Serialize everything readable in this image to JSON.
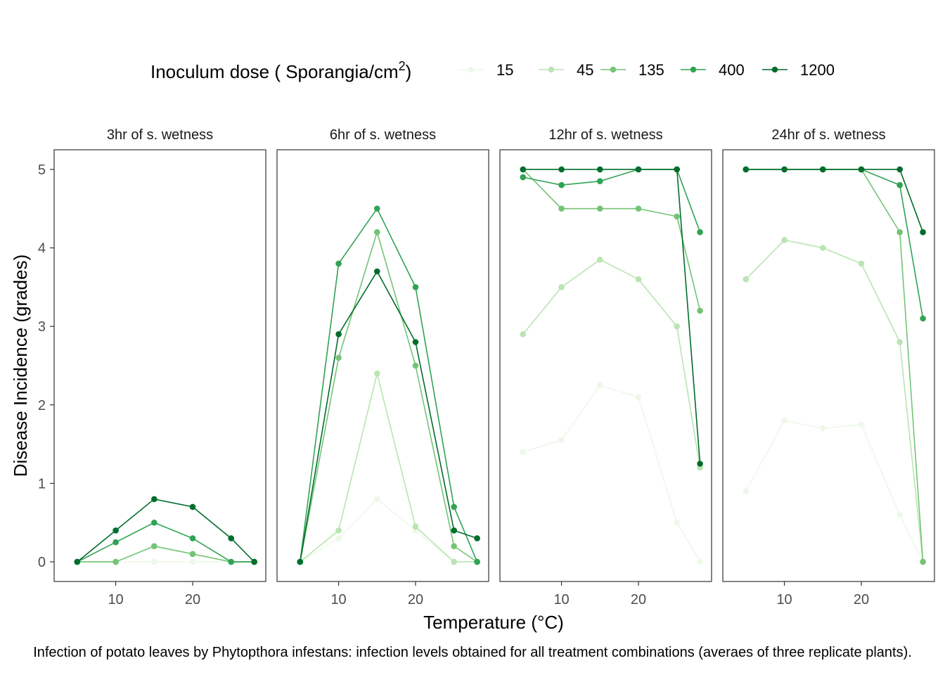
{
  "chart_data": {
    "type": "line",
    "legend": {
      "title_main": "Inoculum dose ( Sporangia/cm",
      "title_sup": "2",
      "title_close": ")",
      "placement": "top",
      "entries": [
        "15",
        "45",
        "135",
        "400",
        "1200"
      ]
    },
    "colors": {
      "15": "#edf8e9",
      "45": "#bae4b3",
      "135": "#74c476",
      "400": "#31a354",
      "1200": "#006d2c"
    },
    "xlabel": "Temperature (°C)",
    "ylabel": "Disease Incidence (grades)",
    "caption": "Infection of potato leaves by Phytopthora infestans: infection levels obtained for all treatment combinations (averaes of three replicate plants).",
    "x": [
      5,
      10,
      15,
      20,
      25,
      28
    ],
    "xlim": [
      2,
      29.5
    ],
    "ylim": [
      -0.25,
      5.25
    ],
    "x_ticks": [
      10,
      20
    ],
    "y_ticks": [
      0,
      1,
      2,
      3,
      4,
      5
    ],
    "grid": false,
    "panels": [
      {
        "title": "3hr of s. wetness",
        "series": [
          {
            "name": "15",
            "values": [
              0,
              0,
              0,
              0,
              0,
              0
            ]
          },
          {
            "name": "45",
            "values": [
              0,
              0,
              0.2,
              0.1,
              0,
              0
            ]
          },
          {
            "name": "135",
            "values": [
              0,
              0,
              0.2,
              0.1,
              0,
              0
            ]
          },
          {
            "name": "400",
            "values": [
              0,
              0.25,
              0.5,
              0.3,
              0,
              0
            ]
          },
          {
            "name": "1200",
            "values": [
              0,
              0.4,
              0.8,
              0.7,
              0.3,
              0
            ]
          }
        ]
      },
      {
        "title": "6hr of s. wetness",
        "series": [
          {
            "name": "15",
            "values": [
              0,
              0.3,
              0.8,
              0.4,
              0,
              0
            ]
          },
          {
            "name": "45",
            "values": [
              0,
              0.4,
              2.4,
              0.45,
              0,
              0
            ]
          },
          {
            "name": "135",
            "values": [
              0,
              2.6,
              4.2,
              2.5,
              0.2,
              0
            ]
          },
          {
            "name": "400",
            "values": [
              0,
              3.8,
              4.5,
              3.5,
              0.7,
              0
            ]
          },
          {
            "name": "1200",
            "values": [
              0,
              2.9,
              3.7,
              2.8,
              0.4,
              0.3
            ]
          }
        ]
      },
      {
        "title": "12hr of s. wetness",
        "series": [
          {
            "name": "15",
            "values": [
              1.4,
              1.55,
              2.25,
              2.1,
              0.5,
              0
            ]
          },
          {
            "name": "45",
            "values": [
              2.9,
              3.5,
              3.85,
              3.6,
              3.0,
              1.2
            ]
          },
          {
            "name": "135",
            "values": [
              5.0,
              4.5,
              4.5,
              4.5,
              4.4,
              3.2
            ]
          },
          {
            "name": "400",
            "values": [
              4.9,
              4.8,
              4.85,
              5.0,
              5.0,
              4.2
            ]
          },
          {
            "name": "1200",
            "values": [
              5.0,
              5.0,
              5.0,
              5.0,
              5.0,
              1.25
            ]
          }
        ]
      },
      {
        "title": "24hr of s. wetness",
        "series": [
          {
            "name": "15",
            "values": [
              0.9,
              1.8,
              1.7,
              1.75,
              0.6,
              0
            ]
          },
          {
            "name": "45",
            "values": [
              3.6,
              4.1,
              4.0,
              3.8,
              2.8,
              0
            ]
          },
          {
            "name": "135",
            "values": [
              5.0,
              5.0,
              5.0,
              5.0,
              4.2,
              0
            ]
          },
          {
            "name": "400",
            "values": [
              5.0,
              5.0,
              5.0,
              5.0,
              4.8,
              3.1
            ]
          },
          {
            "name": "1200",
            "values": [
              5.0,
              5.0,
              5.0,
              5.0,
              5.0,
              4.2
            ]
          }
        ]
      }
    ]
  }
}
